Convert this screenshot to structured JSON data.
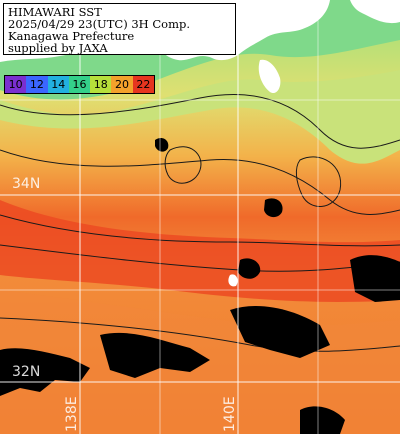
{
  "title": {
    "line1": "HIMAWARI SST",
    "line2": "2025/04/29 23(UTC) 3H Comp.",
    "line3": "Kanagawa Prefecture",
    "line4": "supplied by JAXA"
  },
  "legend": [
    {
      "label": "10",
      "color": "#7a2fd0"
    },
    {
      "label": "12",
      "color": "#3b66ff"
    },
    {
      "label": "14",
      "color": "#22b0e0"
    },
    {
      "label": "16",
      "color": "#34d08a"
    },
    {
      "label": "18",
      "color": "#b7df3a"
    },
    {
      "label": "20",
      "color": "#f3a12b"
    },
    {
      "label": "22",
      "color": "#e6351f"
    }
  ],
  "grid_labels": {
    "lat_34": "34N",
    "lat_32": "32N",
    "lon_138": "138E",
    "lon_140": "140E"
  },
  "colors": {
    "land": "#ffffff",
    "cloud": "#000000",
    "grid": "#ffffff",
    "contour": "#1a1a1a"
  }
}
